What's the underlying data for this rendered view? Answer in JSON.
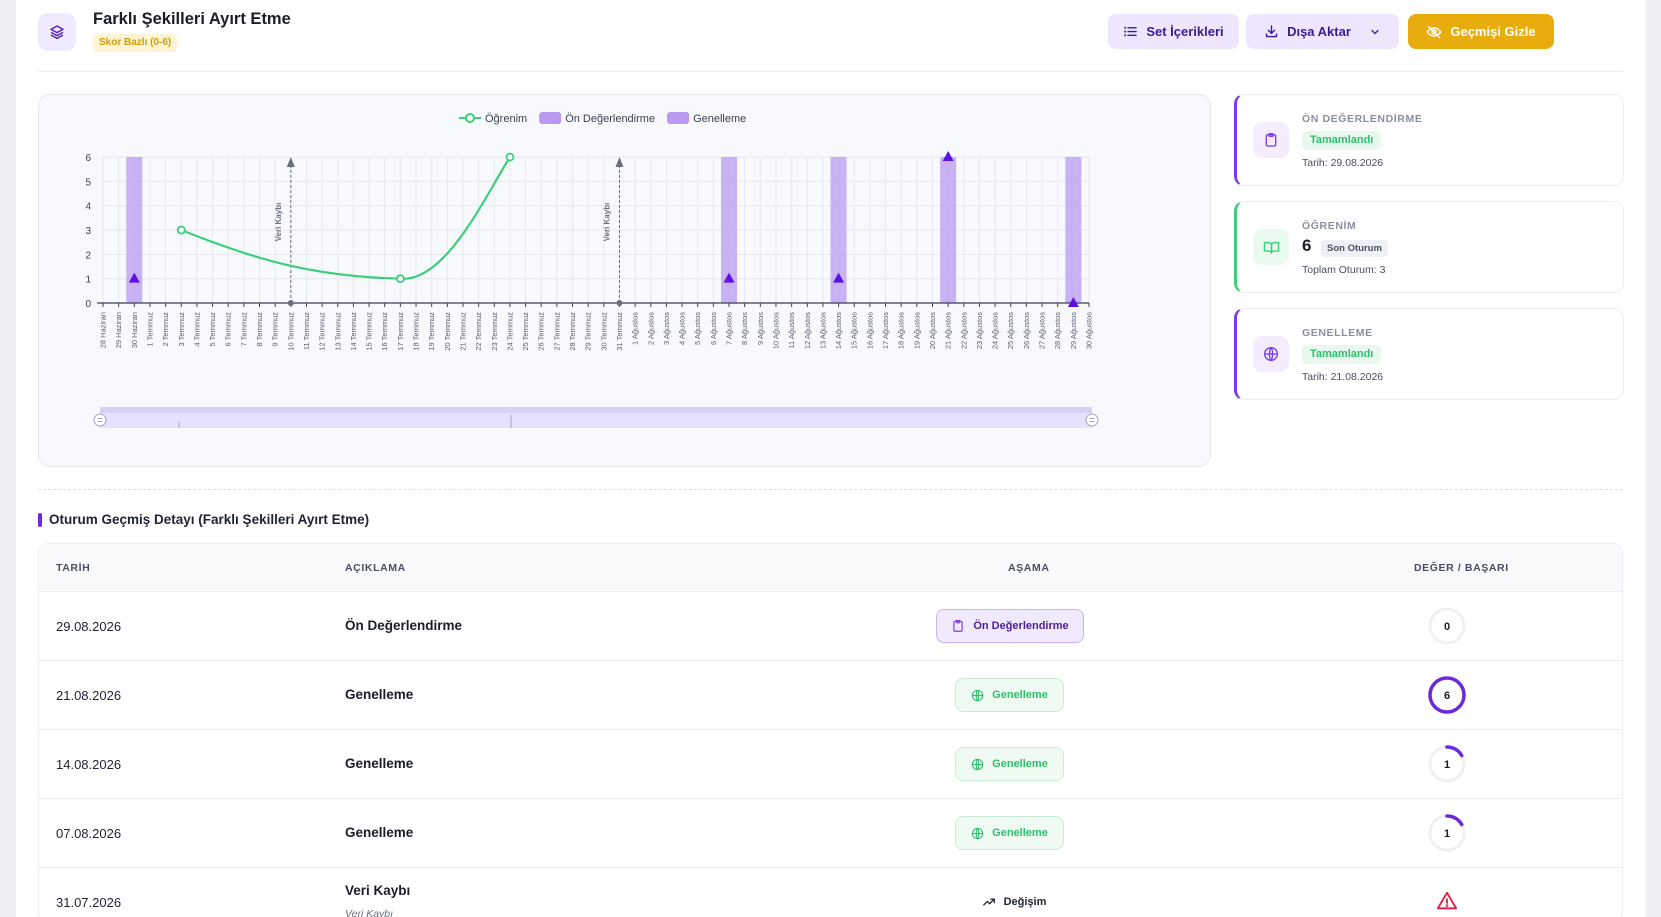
{
  "header": {
    "title": "Farklı Şekilleri Ayırt Etme",
    "badge": "Skor Bazlı (0-6)",
    "btn_set": "Set İçerikleri",
    "btn_export": "Dışa Aktar",
    "btn_hide": "Geçmişi Gizle",
    "accent": "#7c3aed",
    "gold": "#e8ad0d"
  },
  "chart_data": {
    "type": "line",
    "legend": [
      "Öğrenim",
      "Ön Değerlendirme",
      "Genelleme"
    ],
    "legend_position": "top-center",
    "ylim": [
      0,
      6
    ],
    "yticks": [
      "0",
      "1",
      "2",
      "3",
      "4",
      "5",
      "6"
    ],
    "categories": [
      "28 Haziran",
      "29 Haziran",
      "30 Haziran",
      "1 Temmuz",
      "2 Temmuz",
      "3 Temmuz",
      "4 Temmuz",
      "5 Temmuz",
      "6 Temmuz",
      "7 Temmuz",
      "8 Temmuz",
      "9 Temmuz",
      "10 Temmuz",
      "11 Temmuz",
      "12 Temmuz",
      "13 Temmuz",
      "14 Temmuz",
      "15 Temmuz",
      "16 Temmuz",
      "17 Temmuz",
      "18 Temmuz",
      "19 Temmuz",
      "20 Temmuz",
      "21 Temmuz",
      "22 Temmuz",
      "23 Temmuz",
      "24 Temmuz",
      "25 Temmuz",
      "26 Temmuz",
      "27 Temmuz",
      "28 Temmuz",
      "29 Temmuz",
      "30 Temmuz",
      "31 Temmuz",
      "1 Ağustos",
      "2 Ağustos",
      "3 Ağustos",
      "4 Ağustos",
      "5 Ağustos",
      "6 Ağustos",
      "7 Ağustos",
      "8 Ağustos",
      "9 Ağustos",
      "10 Ağustos",
      "11 Ağustos",
      "12 Ağustos",
      "13 Ağustos",
      "14 Ağustos",
      "15 Ağustos",
      "16 Ağustos",
      "17 Ağustos",
      "18 Ağustos",
      "19 Ağustos",
      "20 Ağustos",
      "21 Ağustos",
      "22 Ağustos",
      "23 Ağustos",
      "24 Ağustos",
      "25 Ağustos",
      "26 Ağustos",
      "27 Ağustos",
      "28 Ağustos",
      "29 Ağustos",
      "30 Ağustos"
    ],
    "series": [
      {
        "name": "Öğrenim",
        "type": "line",
        "color": "#3ccf7a",
        "points": [
          {
            "x": "3 Temmuz",
            "y": 3
          },
          {
            "x": "17 Temmuz",
            "y": 1
          },
          {
            "x": "24 Temmuz",
            "y": 6
          }
        ]
      },
      {
        "name": "Ön Değerlendirme",
        "type": "band",
        "color": "#b89af2",
        "markers": [
          {
            "x": "30 Haziran",
            "y": 1
          },
          {
            "x": "29 Ağustos",
            "y": 0
          }
        ]
      },
      {
        "name": "Genelleme",
        "type": "band",
        "color": "#b89af2",
        "markers": [
          {
            "x": "7 Ağustos",
            "y": 1
          },
          {
            "x": "14 Ağustos",
            "y": 1
          },
          {
            "x": "21 Ağustos",
            "y": 6
          }
        ]
      }
    ],
    "annotations": [
      {
        "x": "10 Temmuz",
        "label": "Veri Kaybı"
      },
      {
        "x": "31 Temmuz",
        "label": "Veri Kaybı"
      }
    ]
  },
  "stats": [
    {
      "label": "ÖN DEĞERLENDİRME",
      "status": "Tamamlandı",
      "sub": "Tarih: 29.08.2026",
      "icon": "clipboard-icon",
      "color": "#7c3aed"
    },
    {
      "label": "ÖĞRENİM",
      "value": "6",
      "tag": "Son Oturum",
      "sub": "Toplam Oturum: 3",
      "icon": "book-icon",
      "color": "#3ccf7a"
    },
    {
      "label": "GENELLEME",
      "status": "Tamamlandı",
      "sub": "Tarih: 21.08.2026",
      "icon": "globe-icon",
      "color": "#7c3aed"
    }
  ],
  "history": {
    "title": "Oturum Geçmiş Detayı (Farklı Şekilleri Ayırt Etme)",
    "columns": [
      "TARİH",
      "AÇIKLAMA",
      "AŞAMA",
      "DEĞER / BAŞARI"
    ],
    "rows": [
      {
        "date": "29.08.2026",
        "desc": "Ön Değerlendirme",
        "stage": "Ön Değerlendirme",
        "value": "0"
      },
      {
        "date": "21.08.2026",
        "desc": "Genelleme",
        "stage": "Genelleme",
        "value": "6"
      },
      {
        "date": "14.08.2026",
        "desc": "Genelleme",
        "stage": "Genelleme",
        "value": "1"
      },
      {
        "date": "07.08.2026",
        "desc": "Genelleme",
        "stage": "Genelleme",
        "value": "1"
      },
      {
        "date": "31.07.2026",
        "desc": "Veri Kaybı",
        "sub": "Veri Kaybı",
        "stage": "Değişim",
        "value": ""
      }
    ]
  }
}
